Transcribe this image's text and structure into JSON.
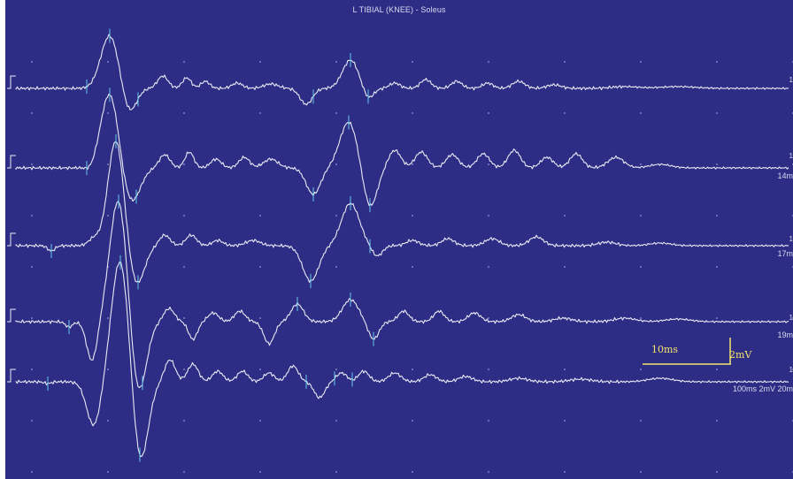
{
  "window": {
    "title": "L TIBIAL (KNEE) - Soleus"
  },
  "traces": [
    {
      "name": "trace-1",
      "right_number": "1",
      "label": ""
    },
    {
      "name": "trace-2",
      "right_number": "1",
      "label": "14m"
    },
    {
      "name": "trace-3",
      "right_number": "1",
      "label": "17m"
    },
    {
      "name": "trace-4",
      "right_number": "1",
      "label": "19m"
    },
    {
      "name": "trace-5",
      "right_number": "1",
      "label": "100ms 2mV 20m"
    }
  ],
  "scale_bar": {
    "time_label": "10ms",
    "amplitude_label": "2mV"
  },
  "colors": {
    "background": "#2e2d86",
    "trace": "#e9e9f4",
    "marker": "#67c6e6",
    "scale": "#f2e36a",
    "grid_dot": "#9a9acc"
  }
}
